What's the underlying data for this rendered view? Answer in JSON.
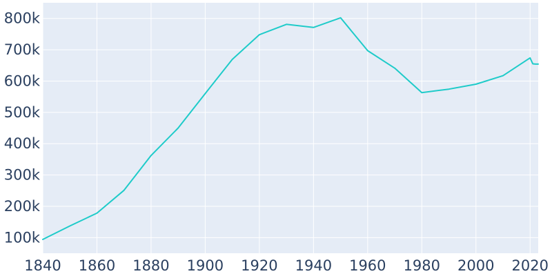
{
  "chart_data": {
    "type": "line",
    "title": "",
    "xlabel": "",
    "ylabel": "",
    "xlim": [
      1840,
      2023
    ],
    "ylim": [
      50000,
      850000
    ],
    "x_ticks": [
      1840,
      1860,
      1880,
      1900,
      1920,
      1940,
      1960,
      1980,
      2000,
      2020
    ],
    "x_tick_labels": [
      "1840",
      "1860",
      "1880",
      "1900",
      "1920",
      "1940",
      "1960",
      "1980",
      "2000",
      "2020"
    ],
    "y_ticks": [
      100000,
      200000,
      300000,
      400000,
      500000,
      600000,
      700000,
      800000
    ],
    "y_tick_labels": [
      "100k",
      "200k",
      "300k",
      "400k",
      "500k",
      "600k",
      "700k",
      "800k"
    ],
    "grid": true,
    "legend": "none",
    "series": [
      {
        "x": [
          1840,
          1850,
          1860,
          1870,
          1880,
          1890,
          1900,
          1910,
          1920,
          1930,
          1940,
          1950,
          1960,
          1970,
          1980,
          1990,
          2000,
          2010,
          2020,
          2021,
          2022,
          2023
        ],
        "values": [
          94000,
          137000,
          178000,
          251000,
          362000,
          450000,
          560000,
          669000,
          748000,
          781000,
          771000,
          802000,
          697000,
          641000,
          563000,
          574000,
          590000,
          617000,
          674000,
          655000,
          654000,
          654000
        ]
      }
    ],
    "colors": {
      "plot_background": "#e5ecf6",
      "gridline": "#ffffff",
      "line": "#1ecbc9",
      "tick_text": "#2a3f5f"
    }
  }
}
